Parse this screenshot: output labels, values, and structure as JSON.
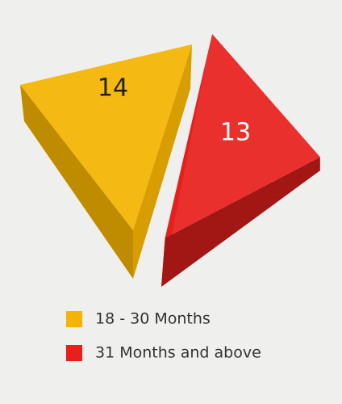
{
  "chart_data": {
    "type": "prism",
    "categories": [
      "18 - 30 Months",
      "31 Months and above"
    ],
    "values": [
      14,
      13
    ],
    "colors": [
      "#f5b400",
      "#e8201c"
    ]
  }
}
